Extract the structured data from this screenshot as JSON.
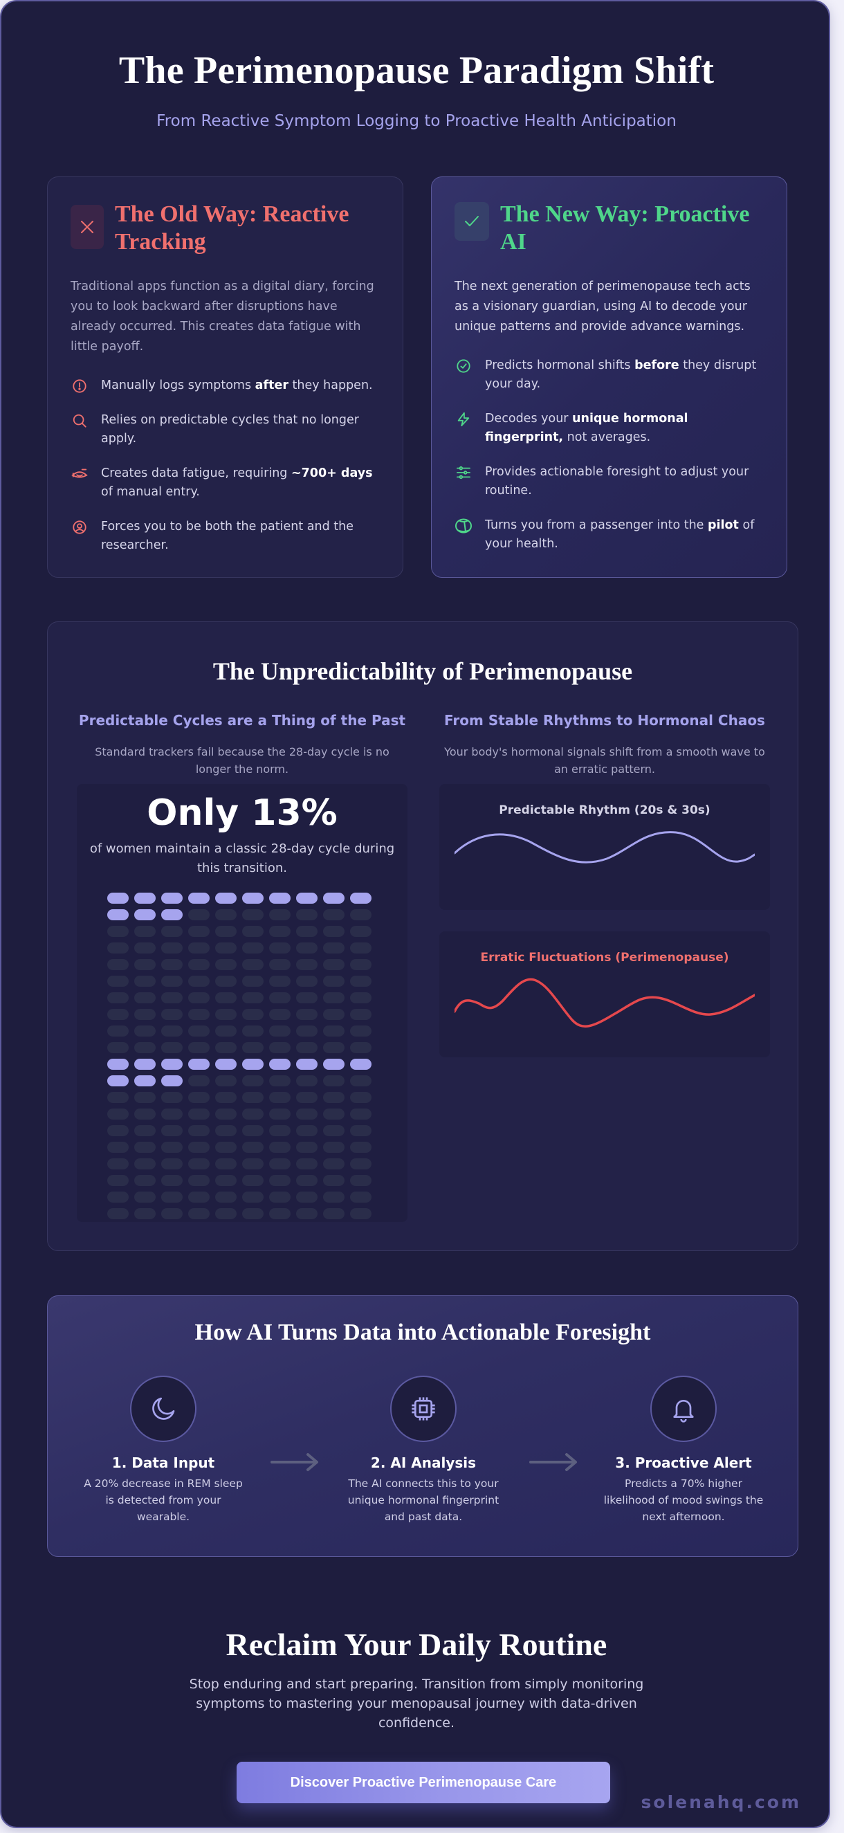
{
  "header": {
    "title": "The Perimenopause Paradigm Shift",
    "subtitle": "From Reactive Symptom Logging to Proactive Health Anticipation"
  },
  "comparison": {
    "old_way": {
      "icon": "x-icon",
      "title": "The Old Way: Reactive Tracking",
      "description": "Traditional apps function as a digital diary, forcing you to look backward after disruptions have already occurred. This creates data fatigue with little payoff.",
      "items": [
        {
          "icon": "alert-circle-icon",
          "pre": "Manually logs symptoms ",
          "bold": "after",
          "post": " they happen."
        },
        {
          "icon": "search-icon",
          "pre": "Relies on predictable cycles that no longer apply.",
          "bold": "",
          "post": ""
        },
        {
          "icon": "eye-off-tired-icon",
          "pre": "Creates data fatigue, requiring ",
          "bold": "~700+ days",
          "post": " of manual entry."
        },
        {
          "icon": "user-circle-icon",
          "pre": "Forces you to be both the patient and the researcher.",
          "bold": "",
          "post": ""
        }
      ]
    },
    "new_way": {
      "icon": "check-icon",
      "title": "The New Way: Proactive AI",
      "description": "The next generation of perimenopause tech acts as a visionary guardian, using AI to decode your unique patterns and provide advance warnings.",
      "items": [
        {
          "icon": "check-circle-icon",
          "pre": "Predicts hormonal shifts ",
          "bold": "before",
          "post": " they disrupt your day."
        },
        {
          "icon": "lightning-icon",
          "pre": "Decodes your ",
          "bold": "unique hormonal fingerprint,",
          "post": " not averages."
        },
        {
          "icon": "sliders-icon",
          "pre": "Provides actionable foresight to adjust your routine.",
          "bold": "",
          "post": ""
        },
        {
          "icon": "steering-icon",
          "pre": "Turns you from a passenger into the ",
          "bold": "pilot",
          "post": " of your health."
        }
      ]
    }
  },
  "unpredictability": {
    "title": "The Unpredictability of Perimenopause",
    "left": {
      "heading": "Predictable Cycles are a Thing of the Past",
      "subtext": "Standard trackers fail because the 28-day cycle is no longer the norm.",
      "stat_value": "Only 13%",
      "stat_desc": "of women maintain a classic 28-day cycle during this transition."
    },
    "right": {
      "heading": "From Stable Rhythms to Hormonal Chaos",
      "subtext": "Your body's hormonal signals shift from a smooth wave to an erratic pattern.",
      "wave1_label": "Predictable Rhythm (20s & 30s)",
      "wave2_label": "Erratic Fluctuations (Perimenopause)"
    }
  },
  "chart_data": [
    {
      "type": "waffle",
      "title": "Only 13%",
      "groups": 2,
      "cells_per_group": 100,
      "columns": 10,
      "filled_per_group": 13,
      "filled_color": "#a6a4ee",
      "empty_color": "#2a2d4a"
    },
    {
      "type": "line",
      "title": "Predictable Rhythm (20s & 30s)",
      "shape": "regular sine wave, ~2 periods",
      "color": "#a6a4ee"
    },
    {
      "type": "line",
      "title": "Erratic Fluctuations (Perimenopause)",
      "shape": "irregular wave with varying amplitude",
      "color": "#e5484d"
    }
  ],
  "how_ai": {
    "title": "How AI Turns Data into Actionable Foresight",
    "steps": [
      {
        "icon": "moon-icon",
        "title": "1. Data Input",
        "desc": "A 20% decrease in REM sleep is detected from your wearable."
      },
      {
        "icon": "cpu-chip-icon",
        "title": "2. AI Analysis",
        "desc": "The AI connects this to your unique hormonal fingerprint and past data."
      },
      {
        "icon": "bell-icon",
        "title": "3. Proactive Alert",
        "desc": "Predicts a 70% higher likelihood of mood swings the next afternoon."
      }
    ]
  },
  "cta": {
    "title": "Reclaim Your Daily Routine",
    "description": "Stop enduring and start preparing. Transition from simply monitoring symptoms to mastering your menopausal journey with data-driven confidence.",
    "button_label": "Discover Proactive Perimenopause Care",
    "watermark": "solenahq.com"
  },
  "colors": {
    "background": "#1e1d3e",
    "accent": "#a5a3ec",
    "old_red": "#f0706e",
    "new_green": "#4fd68a"
  }
}
